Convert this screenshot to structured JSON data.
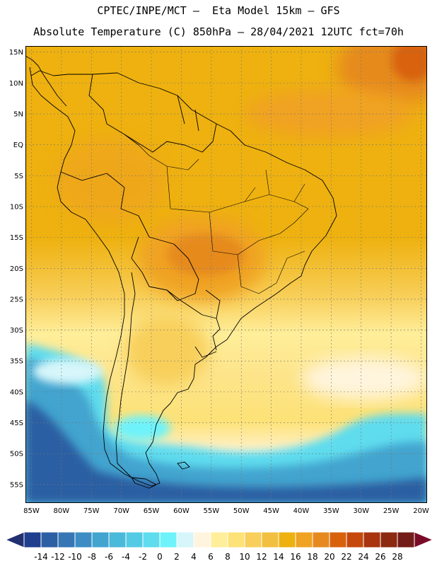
{
  "header": {
    "line1": "CPTEC/INPE/MCT –  Eta Model 15km – GFS",
    "line2": "Absolute Temperature (C) 850hPa – 28/04/2021 12UTC fct=70h"
  },
  "map": {
    "lat_labels": [
      "15N",
      "10N",
      "5N",
      "EQ",
      "5S",
      "10S",
      "15S",
      "20S",
      "25S",
      "30S",
      "35S",
      "40S",
      "45S",
      "50S",
      "55S"
    ],
    "lon_labels": [
      "85W",
      "80W",
      "75W",
      "70W",
      "65W",
      "60W",
      "55W",
      "50W",
      "45W",
      "40W",
      "35W",
      "30W",
      "25W",
      "20W"
    ],
    "lat_values": [
      15,
      10,
      5,
      0,
      -5,
      -10,
      -15,
      -20,
      -25,
      -30,
      -35,
      -40,
      -45,
      -50,
      -55
    ],
    "lon_values": [
      -85,
      -80,
      -75,
      -70,
      -65,
      -60,
      -55,
      -50,
      -45,
      -40,
      -35,
      -30,
      -25,
      -20
    ],
    "extent": {
      "lon_min": -86,
      "lon_max": -19,
      "lat_min": -58,
      "lat_max": 16
    }
  },
  "colorbar": {
    "labels": [
      "-14",
      "-12",
      "-10",
      "-8",
      "-6",
      "-4",
      "-2",
      "0",
      "2",
      "4",
      "6",
      "8",
      "10",
      "12",
      "14",
      "16",
      "18",
      "20",
      "22",
      "24",
      "26",
      "28"
    ],
    "colors": [
      "#1f3e8e",
      "#2c5fa3",
      "#3676b5",
      "#3d8dc4",
      "#43a4cf",
      "#4ab9da",
      "#53cbe4",
      "#5fdcee",
      "#6ef3fa",
      "#d6f6fa",
      "#fff5de",
      "#ffee9a",
      "#fde277",
      "#f8cf5a",
      "#f2c040",
      "#eeb10f",
      "#f0a223",
      "#e68a1f",
      "#d8620c",
      "#c6480c",
      "#a8350d",
      "#8b2a10",
      "#731d18"
    ],
    "left_arrow_color": "#203070",
    "right_arrow_color": "#7a0b28"
  }
}
